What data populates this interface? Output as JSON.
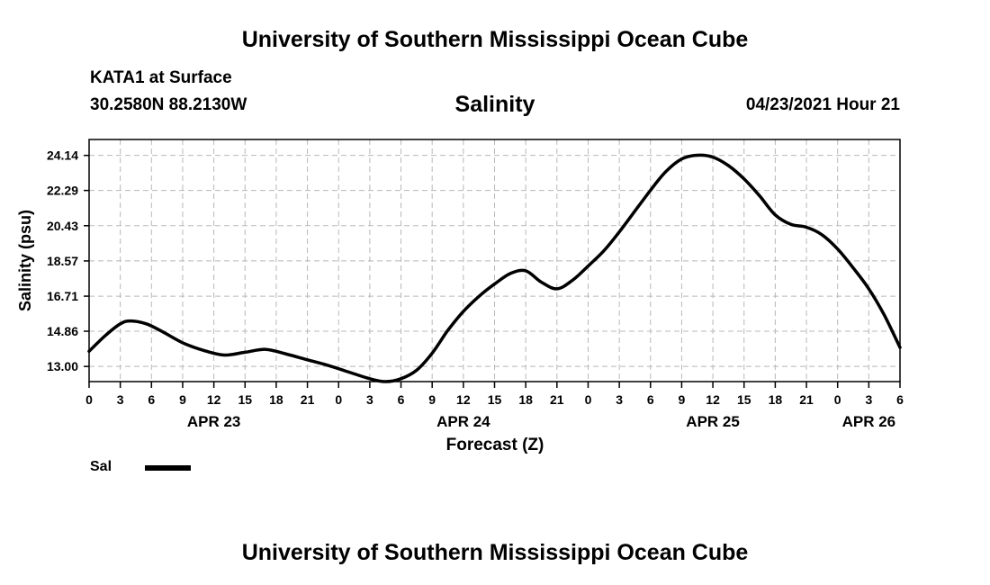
{
  "header": {
    "title": "University of Southern Mississippi Ocean Cube"
  },
  "info": {
    "station": "KATA1 at Surface",
    "coords": "30.2580N  88.2130W",
    "datetime": "04/23/2021 Hour 21"
  },
  "footer": {
    "title": "University of Southern Mississippi Ocean Cube"
  },
  "chart_data": {
    "type": "line",
    "title": "Salinity",
    "xlabel": "Forecast (Z)",
    "ylabel": "Salinity (psu)",
    "x_unit": "hours since APR 23 00Z",
    "xlim": [
      0,
      78
    ],
    "ylim": [
      12.2,
      24.98
    ],
    "y_ticks": [
      "13.00",
      "14.86",
      "16.71",
      "18.57",
      "20.43",
      "22.29",
      "24.14"
    ],
    "y_tick_values": [
      13.0,
      14.86,
      16.71,
      18.57,
      20.43,
      22.29,
      24.14
    ],
    "x_ticks": [
      0,
      3,
      6,
      9,
      12,
      15,
      18,
      21,
      24,
      27,
      30,
      33,
      36,
      39,
      42,
      45,
      48,
      51,
      54,
      57,
      60,
      63,
      66,
      69,
      72,
      75,
      78
    ],
    "x_tick_labels": [
      "0",
      "3",
      "6",
      "9",
      "12",
      "15",
      "18",
      "21",
      "0",
      "3",
      "6",
      "9",
      "12",
      "15",
      "18",
      "21",
      "0",
      "3",
      "6",
      "9",
      "12",
      "15",
      "18",
      "21",
      "0",
      "3",
      "6"
    ],
    "date_labels": [
      {
        "hour": 12,
        "label": "APR 23"
      },
      {
        "hour": 36,
        "label": "APR 24"
      },
      {
        "hour": 60,
        "label": "APR 25"
      },
      {
        "hour": 75,
        "label": "APR 26"
      }
    ],
    "grid": true,
    "series": [
      {
        "name": "Sal",
        "color": "#000000",
        "x": [
          0,
          1.5,
          3,
          4,
          5.5,
          7,
          9,
          11,
          13,
          15,
          17,
          19,
          21,
          23,
          25,
          27,
          28.5,
          30,
          31.5,
          33,
          34.5,
          36,
          37.5,
          39,
          40.5,
          42,
          43.5,
          45,
          46.5,
          48,
          49.5,
          51,
          52.5,
          54,
          55.5,
          57,
          58.5,
          60,
          61.5,
          63,
          64.5,
          66,
          67.5,
          69,
          70.5,
          72,
          73.5,
          75,
          76.5,
          78
        ],
        "values": [
          13.8,
          14.6,
          15.25,
          15.4,
          15.25,
          14.85,
          14.25,
          13.85,
          13.6,
          13.75,
          13.9,
          13.65,
          13.35,
          13.05,
          12.7,
          12.35,
          12.2,
          12.35,
          12.8,
          13.7,
          14.9,
          15.9,
          16.7,
          17.35,
          17.9,
          18.05,
          17.45,
          17.1,
          17.55,
          18.3,
          19.1,
          20.1,
          21.2,
          22.3,
          23.3,
          23.95,
          24.15,
          24.05,
          23.6,
          22.9,
          22.0,
          21.0,
          20.5,
          20.35,
          19.95,
          19.2,
          18.2,
          17.1,
          15.7,
          14.0
        ]
      }
    ],
    "legend": {
      "position": "bottom-left",
      "entries": [
        "Sal"
      ]
    }
  }
}
